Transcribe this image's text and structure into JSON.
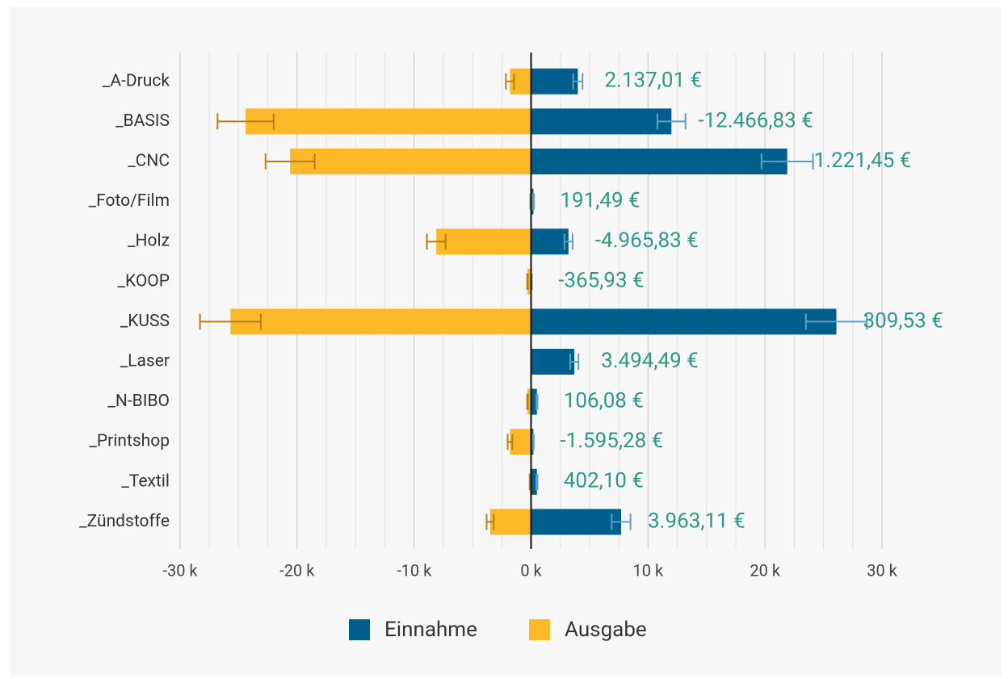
{
  "chart_data": {
    "type": "diverging_bar",
    "categories": [
      "_A-Druck",
      "_BASIS",
      "_CNC",
      "_Foto/Film",
      "_Holz",
      "_KOOP",
      "_KUSS",
      "_Laser",
      "_N-BIBO",
      "_Printshop",
      "_Textil",
      "_Zündstoffe"
    ],
    "series": [
      {
        "name": "Einnahme",
        "color": "#005f8c",
        "error_color": "#5e9fc4",
        "values": [
          4000,
          12000,
          21900,
          200,
          3200,
          50,
          26100,
          3700,
          500,
          200,
          500,
          7700
        ],
        "errors": [
          400,
          1200,
          2200,
          50,
          350,
          20,
          2600,
          350,
          50,
          30,
          50,
          800
        ]
      },
      {
        "name": "Ausgabe",
        "color": "#fdb827",
        "error_color": "#b5801c",
        "values": [
          -1800,
          -24400,
          -20600,
          -50,
          -8100,
          -300,
          -25700,
          0,
          -300,
          -1800,
          -100,
          -3500
        ],
        "errors": [
          350,
          2400,
          2100,
          10,
          800,
          30,
          2600,
          0,
          30,
          200,
          20,
          300
        ]
      }
    ],
    "balance_labels": [
      "2.137,01 €",
      "-12.466,83 €",
      "1.221,45 €",
      "191,49 €",
      "-4.965,83 €",
      "-365,93 €",
      "309,53 €",
      "3.494,49 €",
      "106,08 €",
      "-1.595,28 €",
      "402,10 €",
      "3.963,11 €"
    ],
    "xlim": [
      -30000,
      30000
    ],
    "xticks": [
      {
        "value": -30000,
        "label": "-30 k"
      },
      {
        "value": -20000,
        "label": "-20 k"
      },
      {
        "value": -10000,
        "label": "-10 k"
      },
      {
        "value": 0,
        "label": "0 k"
      },
      {
        "value": 10000,
        "label": "10 k"
      },
      {
        "value": 20000,
        "label": "20 k"
      },
      {
        "value": 30000,
        "label": "30 k"
      }
    ],
    "grid": true,
    "legend": "bottom"
  }
}
